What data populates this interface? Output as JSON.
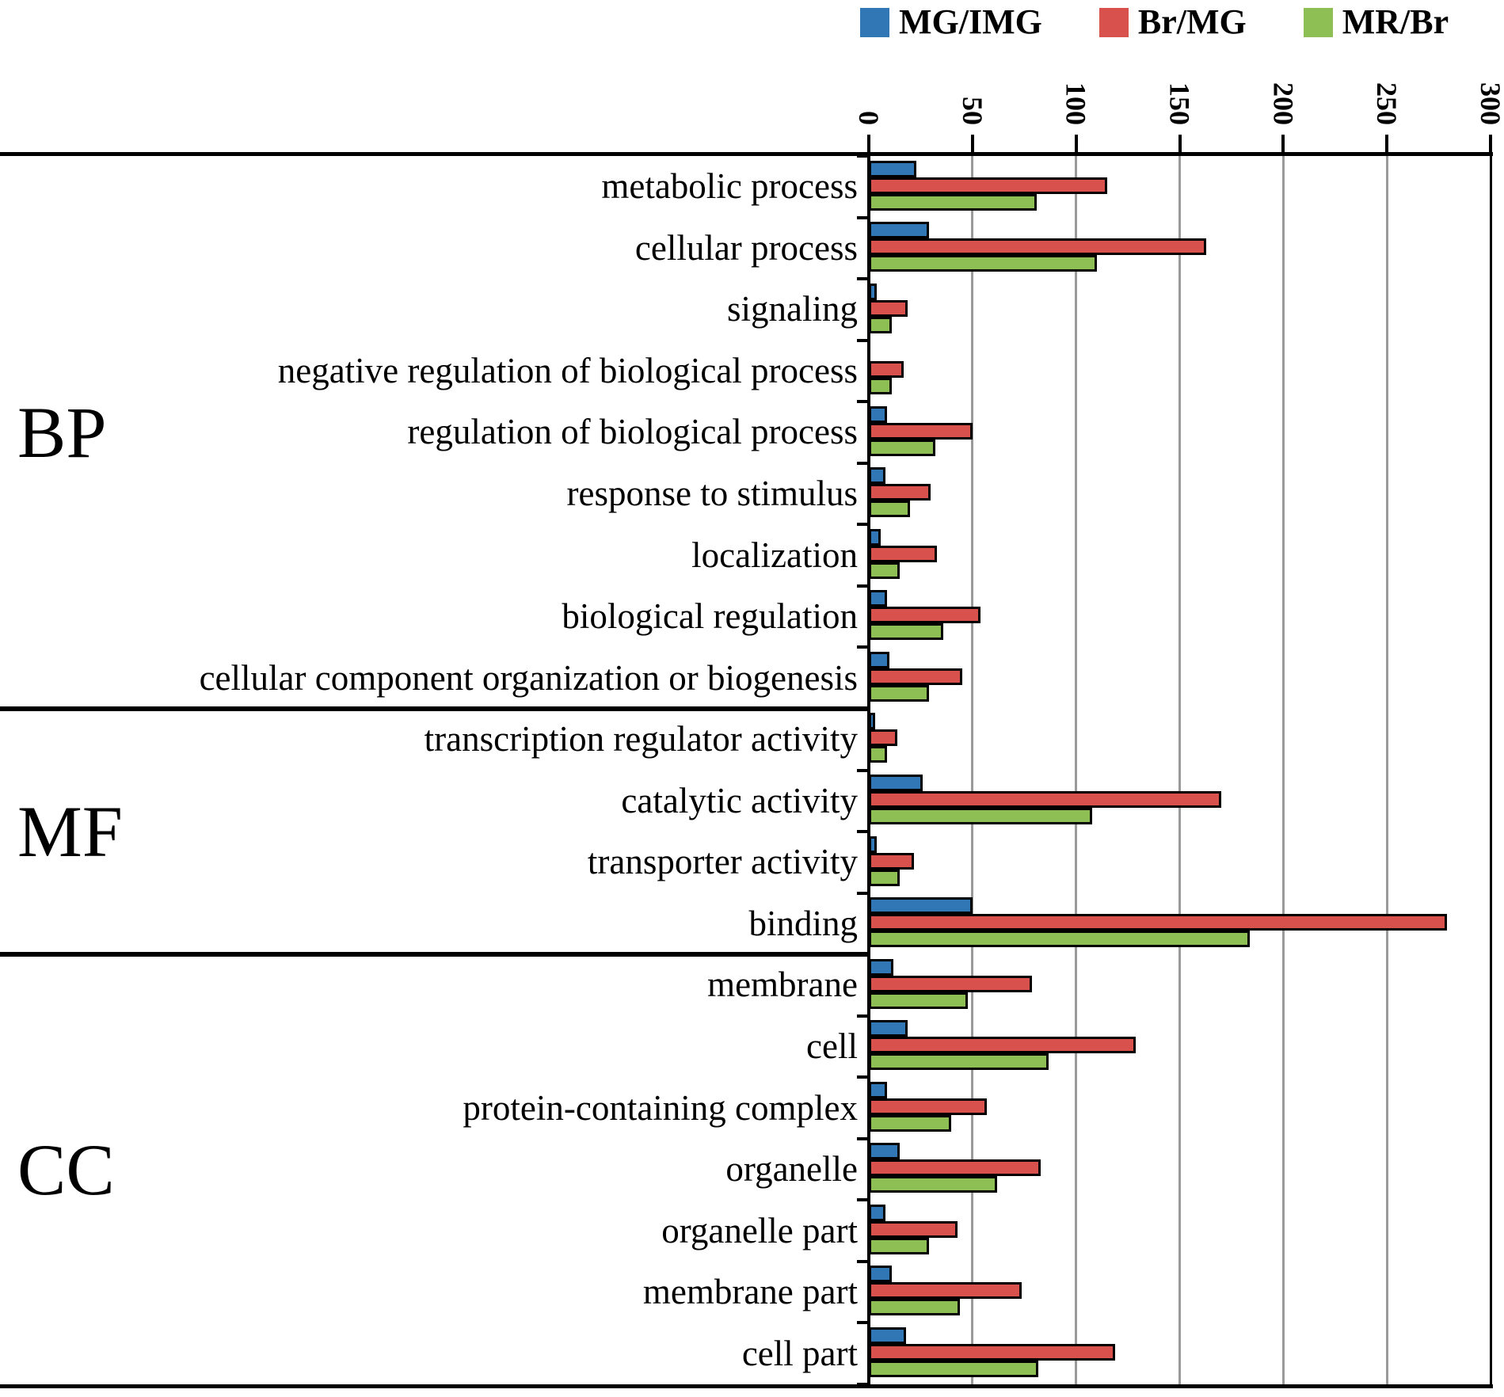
{
  "chart_data": {
    "type": "bar",
    "orientation": "horizontal",
    "title": "",
    "x_axis": {
      "position": "top",
      "min": 0,
      "max": 300,
      "step": 50,
      "tick_labels": [
        "0",
        "50",
        "100",
        "150",
        "200",
        "250",
        "300"
      ],
      "grid": true
    },
    "legend": {
      "position": "top-right",
      "entries": [
        {
          "name": "MG/IMG",
          "color": "#3277B5"
        },
        {
          "name": "Br/MG",
          "color": "#D8514D"
        },
        {
          "name": "MR/Br",
          "color": "#8DBF54"
        }
      ]
    },
    "series_names": [
      "MG/IMG",
      "Br/MG",
      "MR/Br"
    ],
    "sections": [
      {
        "label": "BP",
        "items": [
          {
            "category": "metabolic process",
            "values": [
              21,
              113,
              79
            ]
          },
          {
            "category": "cellular process",
            "values": [
              27,
              161,
              108
            ]
          },
          {
            "category": "signaling",
            "values": [
              2,
              17,
              9
            ]
          },
          {
            "category": "negative regulation of biological process",
            "values": [
              0,
              15,
              9
            ]
          },
          {
            "category": "regulation of biological process",
            "values": [
              7,
              48,
              30
            ]
          },
          {
            "category": "response to stimulus",
            "values": [
              6,
              28,
              18
            ]
          },
          {
            "category": "localization",
            "values": [
              4,
              31,
              13
            ]
          },
          {
            "category": "biological regulation",
            "values": [
              7,
              52,
              34
            ]
          },
          {
            "category": "cellular component organization or biogenesis",
            "values": [
              8,
              43,
              27
            ]
          }
        ]
      },
      {
        "label": "MF",
        "items": [
          {
            "category": "transcription regulator activity",
            "values": [
              1,
              12,
              7
            ]
          },
          {
            "category": "catalytic activity",
            "values": [
              24,
              168,
              106
            ]
          },
          {
            "category": "transporter activity",
            "values": [
              2,
              20,
              13
            ]
          },
          {
            "category": "binding",
            "values": [
              48,
              277,
              182
            ]
          }
        ]
      },
      {
        "label": "CC",
        "items": [
          {
            "category": "membrane",
            "values": [
              10,
              77,
              46
            ]
          },
          {
            "category": "cell",
            "values": [
              17,
              127,
              85
            ]
          },
          {
            "category": "protein-containing complex",
            "values": [
              7,
              55,
              38
            ]
          },
          {
            "category": "organelle",
            "values": [
              13,
              81,
              60
            ]
          },
          {
            "category": "organelle part",
            "values": [
              6,
              41,
              27
            ]
          },
          {
            "category": "membrane part",
            "values": [
              9,
              72,
              42
            ]
          },
          {
            "category": "cell part",
            "values": [
              16,
              117,
              80
            ]
          }
        ]
      }
    ]
  },
  "style_colors": {
    "bar_blue": "#3277B5",
    "bar_red": "#D8514D",
    "bar_green": "#8DBF54",
    "gridline_gray": "#9A9A9A",
    "axis_black": "#000000"
  }
}
